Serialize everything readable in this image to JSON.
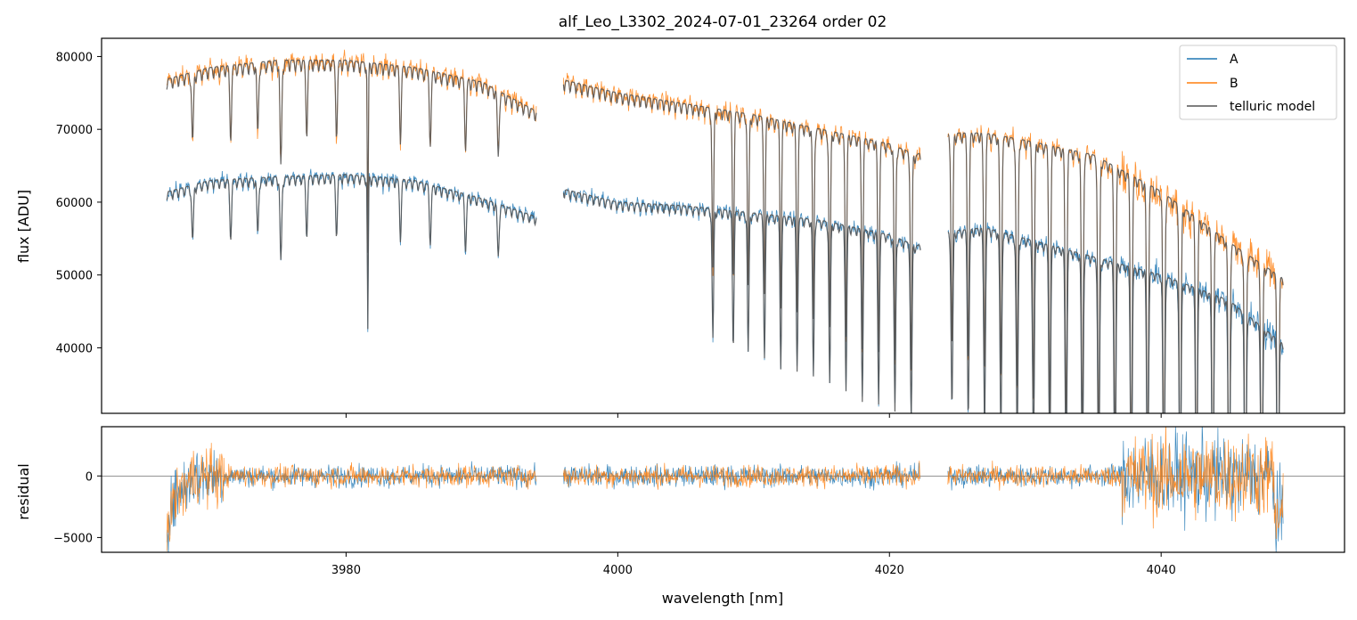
{
  "chart_data": [
    {
      "type": "line",
      "title": "alf_Leo_L3302_2024-07-01_23264  order 02",
      "xlabel": "",
      "ylabel": "flux [ADU]",
      "xlim": [
        3962,
        4053.5
      ],
      "ylim": [
        31000,
        82500
      ],
      "x_ticks": [
        3980,
        4000,
        4020,
        4040
      ],
      "y_ticks": [
        40000,
        50000,
        60000,
        70000,
        80000
      ],
      "y_tick_labels": [
        "40000",
        "50000",
        "60000",
        "70000",
        "80000"
      ],
      "legend": {
        "position": "top-right",
        "entries": [
          "A",
          "B",
          "telluric model"
        ]
      },
      "segments": [
        [
          3966.8,
          3994.0
        ],
        [
          3996.0,
          4022.3
        ],
        [
          4024.3,
          4049.0
        ]
      ],
      "series": [
        {
          "name": "A",
          "color": "#1f77b4",
          "x": [
            3967,
            3970,
            3975,
            3980,
            3985,
            3990,
            3994,
            3996,
            4000,
            4005,
            4010,
            4015,
            4020,
            4022,
            4024.5,
            4027,
            4030,
            4035,
            4040,
            4045,
            4049
          ],
          "values": [
            61500,
            63000,
            63500,
            63800,
            63000,
            60500,
            58000,
            61800,
            60000,
            59500,
            58500,
            57500,
            55500,
            54000,
            56000,
            56500,
            55000,
            52500,
            50000,
            46500,
            40500
          ]
        },
        {
          "name": "B",
          "color": "#ff7f0e",
          "x": [
            3967,
            3970,
            3975,
            3980,
            3985,
            3990,
            3994,
            3996,
            4000,
            4005,
            4010,
            4015,
            4020,
            4022,
            4024.5,
            4027,
            4030,
            4035,
            4040,
            4045,
            4049
          ],
          "values": [
            77000,
            78500,
            79500,
            79500,
            78500,
            76500,
            72500,
            76800,
            75000,
            73500,
            72000,
            70000,
            68000,
            66500,
            69500,
            69500,
            68500,
            66500,
            61500,
            54500,
            49500
          ]
        },
        {
          "name": "telluric model",
          "color": "#555555"
        }
      ],
      "absorption_lines": [
        3968.7,
        3971.5,
        3973.5,
        3975.2,
        3977.1,
        3979.3,
        3981.6,
        3984.0,
        3986.2,
        3988.8,
        3991.2,
        4007.0,
        4008.5,
        4009.6,
        4010.8,
        4012.0,
        4013.2,
        4014.4,
        4015.6,
        4016.8,
        4018.0,
        4019.2,
        4020.4,
        4021.6,
        4024.6,
        4025.8,
        4027.0,
        4028.2,
        4029.4,
        4030.6,
        4031.8,
        4033.0,
        4034.2,
        4035.4,
        4036.6,
        4037.8,
        4039.0,
        4040.2,
        4041.4,
        4042.6,
        4043.8,
        4045.0,
        4046.2,
        4047.4,
        4048.6
      ]
    },
    {
      "type": "line",
      "xlabel": "wavelength [nm]",
      "ylabel": "residual",
      "xlim": [
        3962,
        4053.5
      ],
      "ylim": [
        -6200,
        4000
      ],
      "x_ticks": [
        3980,
        4000,
        4020,
        4040
      ],
      "x_tick_labels": [
        "3980",
        "4000",
        "4020",
        "4040"
      ],
      "y_ticks": [
        -5000,
        0
      ],
      "y_tick_labels": [
        "−5000",
        "0"
      ],
      "zero_line": true,
      "series": [
        {
          "name": "A",
          "color": "#1f77b4",
          "noise_scale": [
            2500,
            900,
            900,
            900,
            3500
          ]
        },
        {
          "name": "B",
          "color": "#ff7f0e",
          "noise_scale": [
            2500,
            900,
            900,
            900,
            3500
          ]
        }
      ]
    }
  ]
}
